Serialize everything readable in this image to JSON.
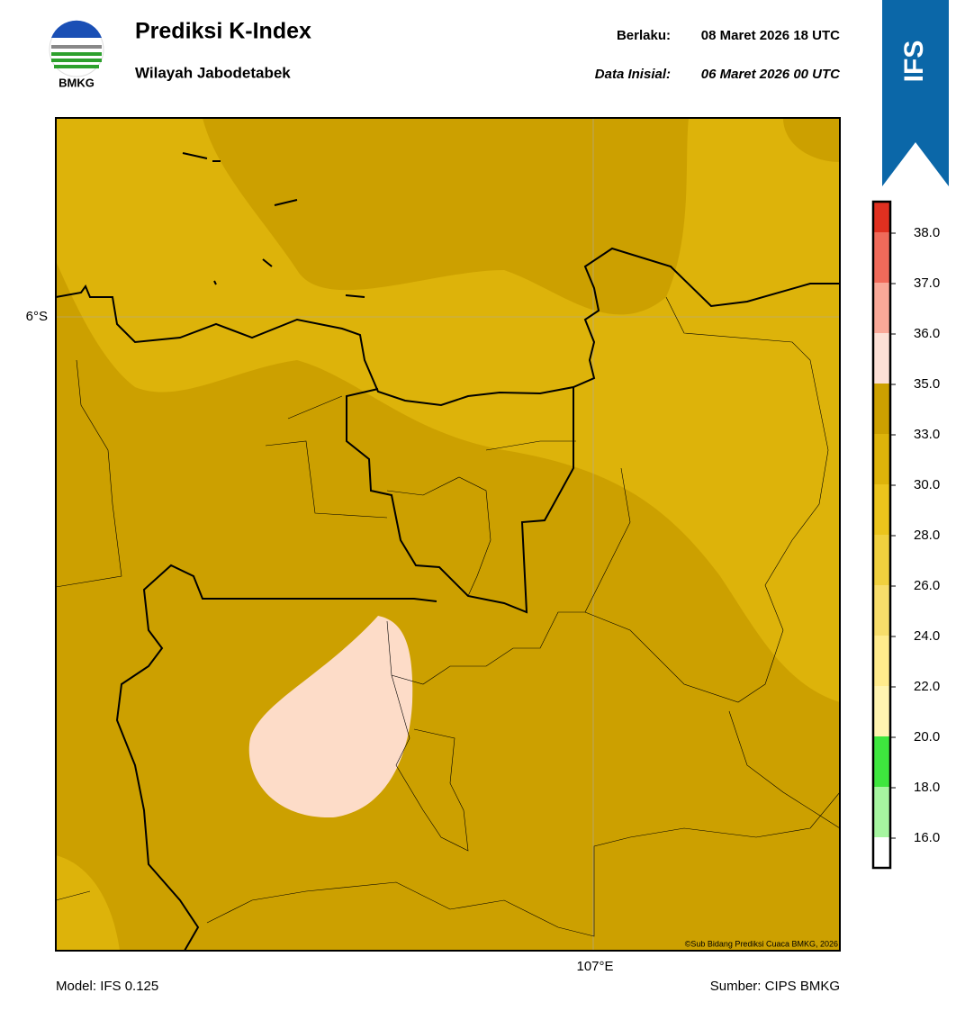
{
  "logo": {
    "text": "BMKG"
  },
  "header": {
    "title": "Prediksi K-Index",
    "subtitle": "Wilayah Jabodetabek",
    "valid_label": "Berlaku:",
    "valid_value": "08 Maret 2026 18 UTC",
    "init_label": "Data Inisial:",
    "init_value": "06 Maret 2026 00 UTC"
  },
  "badge": {
    "text": "IFS"
  },
  "map": {
    "lat_label": "6°S",
    "lon_label": "107°E",
    "credit": "©Sub Bidang Prediksi Cuaca BMKG, 2026"
  },
  "colorbar": {
    "ticks": [
      "16.0",
      "18.0",
      "20.0",
      "22.0",
      "24.0",
      "26.0",
      "28.0",
      "30.0",
      "33.0",
      "35.0",
      "36.0",
      "37.0",
      "38.0"
    ],
    "colors": [
      "#ffffff",
      "#a6f5a0",
      "#3ee63e",
      "#fff4b0",
      "#ffeb8c",
      "#f7dd6a",
      "#f0d03e",
      "#ebc41c",
      "#ddb30a",
      "#cca000",
      "#fde0d6",
      "#f9a898",
      "#f06a5a",
      "#e03020"
    ]
  },
  "footer": {
    "model": "Model: IFS 0.125",
    "source": "Sumber: CIPS BMKG"
  }
}
